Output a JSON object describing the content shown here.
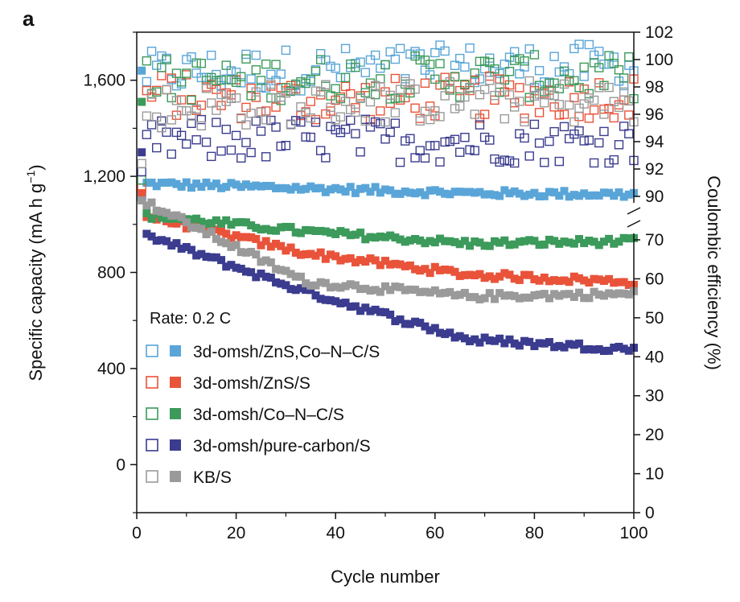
{
  "chart_data": {
    "type": "scatter",
    "panel_label": "a",
    "xlabel": "Cycle number",
    "ylabel_left": "Specific capacity (mA h g",
    "ylabel_left_sup": "−1",
    "ylabel_left_close": ")",
    "ylabel_right": "Coulombic efficiency (%)",
    "xlim": [
      0,
      100
    ],
    "ylim_left": [
      -200,
      1800
    ],
    "x_ticks": [
      "0",
      "20",
      "40",
      "60",
      "80",
      "100"
    ],
    "y_left_ticks": [
      "0",
      "400",
      "800",
      "1,200",
      "1,600"
    ],
    "y_right_ticks_lower": [
      "0",
      "10",
      "20",
      "30",
      "40",
      "50",
      "60",
      "70"
    ],
    "y_right_ticks_upper": [
      "90",
      "92",
      "94",
      "96",
      "98",
      "100",
      "102"
    ],
    "rate_label": "Rate: 0.2 C",
    "series": [
      {
        "name": "3d-omsh/ZnS,Co–N–C/S",
        "color": "#5aa5d8",
        "first": 1640,
        "capacity": [
          1170,
          1150,
          1130,
          1125
        ],
        "efficiency": [
          99.0,
          99.3,
          99.5,
          99.6
        ]
      },
      {
        "name": "3d-omsh/ZnS/S",
        "color": "#e9533a",
        "first": 1130,
        "capacity": [
          1040,
          880,
          790,
          760
        ],
        "efficiency": [
          97.5,
          97.0,
          97.2,
          97.3
        ]
      },
      {
        "name": "3d-omsh/Co–N–C/S",
        "color": "#3c9a5b",
        "first": 1510,
        "capacity": [
          1040,
          970,
          920,
          930
        ],
        "efficiency": [
          98.5,
          98.6,
          98.8,
          98.7
        ]
      },
      {
        "name": "3d-omsh/pure-carbon/S",
        "color": "#3b3c8f",
        "first": 1300,
        "capacity": [
          960,
          720,
          520,
          480
        ],
        "efficiency": [
          94.0,
          94.2,
          94.0,
          94.0
        ]
      },
      {
        "name": "KB/S",
        "color": "#9a9a9a",
        "first": 1100,
        "capacity": [
          1100,
          760,
          700,
          710
        ],
        "efficiency": [
          96.5,
          96.8,
          97.0,
          96.8
        ]
      }
    ]
  }
}
